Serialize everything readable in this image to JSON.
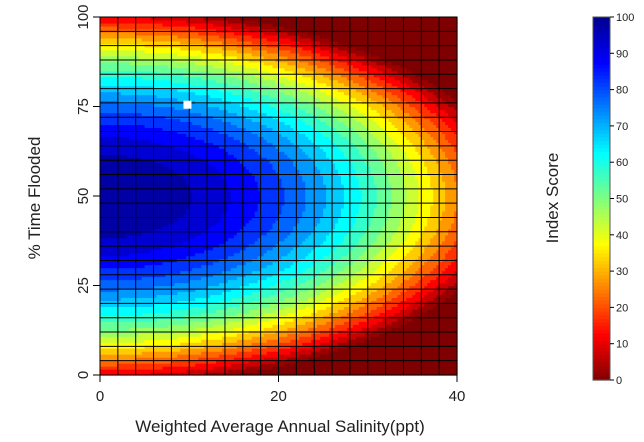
{
  "chart_data": {
    "type": "heatmap",
    "title": "",
    "xlabel": "Weighted Average Annual Salinity(ppt)",
    "ylabel": "% Time Flooded",
    "colorbar_label": "Index Score",
    "xlim": [
      0,
      40
    ],
    "ylim": [
      0,
      100
    ],
    "x_ticks": [
      0,
      20,
      40
    ],
    "y_ticks": [
      0,
      25,
      50,
      75,
      100
    ],
    "colorbar_range": [
      0,
      100
    ],
    "colorbar_ticks": [
      0,
      10,
      20,
      30,
      40,
      50,
      60,
      70,
      80,
      90,
      100
    ],
    "optimum": {
      "x": 0,
      "y": 50,
      "z": 100
    },
    "grid": "on",
    "grid_x_step": 2,
    "grid_y_step": 4,
    "colormap": [
      "#7f0000",
      "#ff0000",
      "#ff7f00",
      "#ffff00",
      "#7fff7f",
      "#00ffff",
      "#007fff",
      "#0000ff",
      "#00008f"
    ],
    "marker": {
      "x": 9.8,
      "y": 75.5,
      "color": "#ffffff"
    }
  }
}
